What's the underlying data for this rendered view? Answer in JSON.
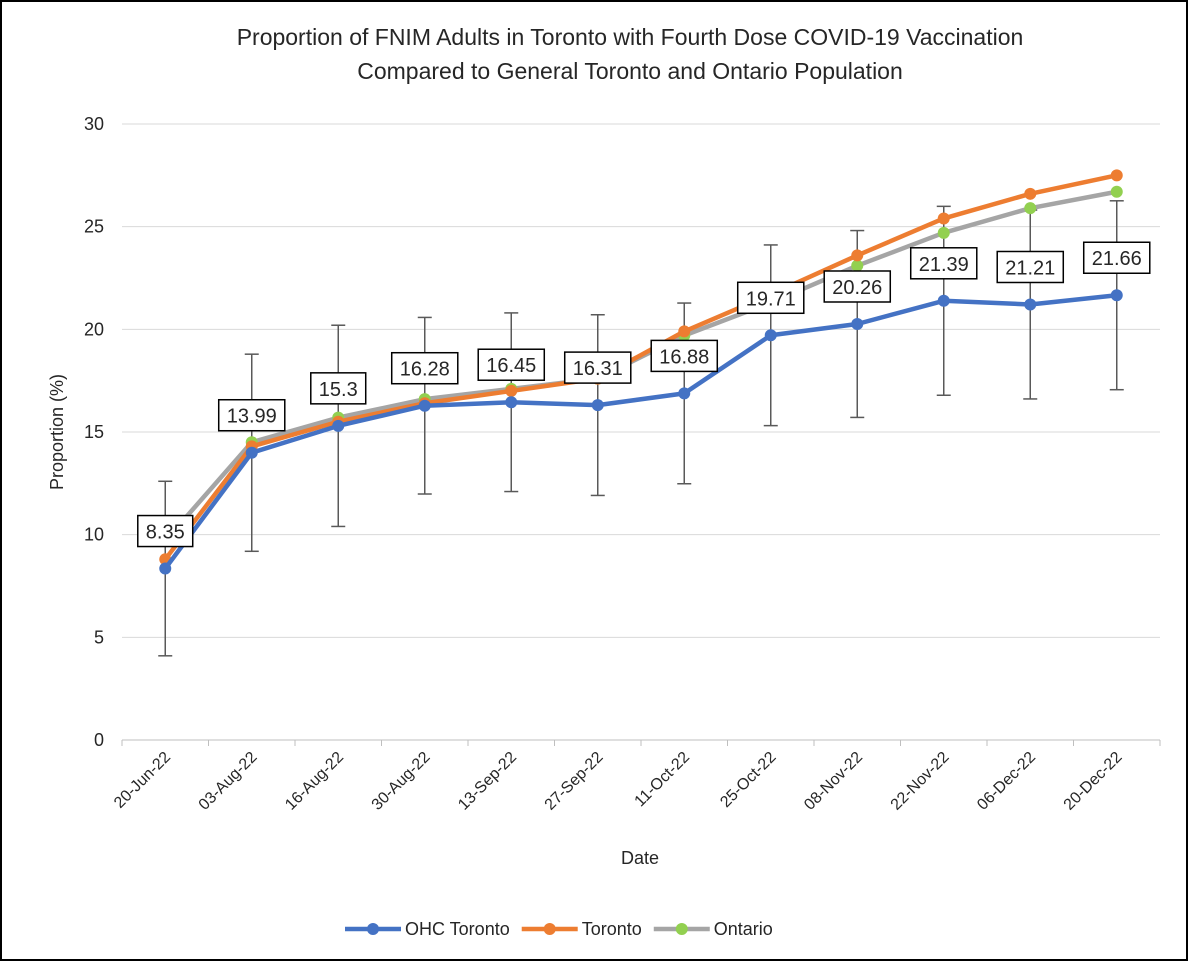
{
  "chart_data": {
    "type": "line",
    "title": "Proportion of FNIM Adults in Toronto with Fourth Dose COVID-19 Vaccination",
    "subtitle": "Compared to General Toronto and Ontario Population",
    "x_label": "Date",
    "y_label": "Proportion (%)",
    "categories": [
      "20-Jun-22",
      "03-Aug-22",
      "16-Aug-22",
      "30-Aug-22",
      "13-Sep-22",
      "27-Sep-22",
      "11-Oct-22",
      "25-Oct-22",
      "08-Nov-22",
      "22-Nov-22",
      "06-Dec-22",
      "20-Dec-22"
    ],
    "series": [
      {
        "name": "OHC Toronto",
        "color": "#4472c4",
        "values": [
          8.35,
          13.99,
          15.3,
          16.28,
          16.45,
          16.31,
          16.88,
          19.71,
          20.26,
          21.39,
          21.21,
          21.66
        ],
        "errors": [
          4.25,
          4.8,
          4.9,
          4.3,
          4.35,
          4.4,
          4.4,
          4.4,
          4.55,
          4.6,
          4.6,
          4.6
        ]
      },
      {
        "name": "Toronto",
        "color": "#ed7d31",
        "values": [
          8.8,
          14.3,
          15.5,
          16.4,
          17.0,
          17.6,
          19.9,
          21.7,
          23.6,
          25.4,
          26.6,
          27.5
        ]
      },
      {
        "name": "Ontario",
        "color": "#a5a5a5",
        "values": [
          9.7,
          14.5,
          15.7,
          16.6,
          17.1,
          17.6,
          19.7,
          21.3,
          23.1,
          24.7,
          25.9,
          26.7
        ]
      }
    ],
    "ylim": [
      0,
      30
    ],
    "yticks": [
      0,
      5,
      10,
      15,
      20,
      25,
      30
    ],
    "grid": true,
    "legend": "bottom"
  }
}
